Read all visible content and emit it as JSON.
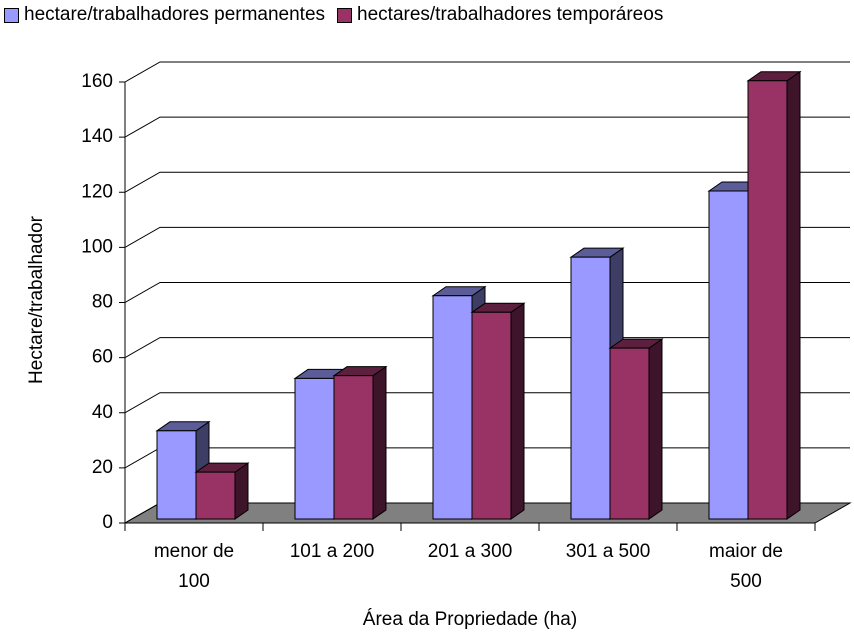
{
  "chart_data": {
    "type": "bar",
    "x_label": "Área da Propriedade (ha)",
    "y_label": "Hectare/trabalhador",
    "categories": [
      "menor de 100",
      "101 a 200",
      "201 a 300",
      "301 a 500",
      "maior de 500"
    ],
    "series": [
      {
        "name": "hectare/trabalhadores permanentes",
        "color": "#9999ff",
        "values": [
          32,
          51,
          81,
          95,
          119
        ]
      },
      {
        "name": "hectares/trabalhadores temporáreos",
        "color": "#993366",
        "values": [
          17,
          52,
          75,
          62,
          159
        ]
      }
    ],
    "ylim": [
      0,
      160
    ],
    "yticks": [
      0,
      20,
      40,
      60,
      80,
      100,
      120,
      140,
      160
    ],
    "grid": true
  }
}
